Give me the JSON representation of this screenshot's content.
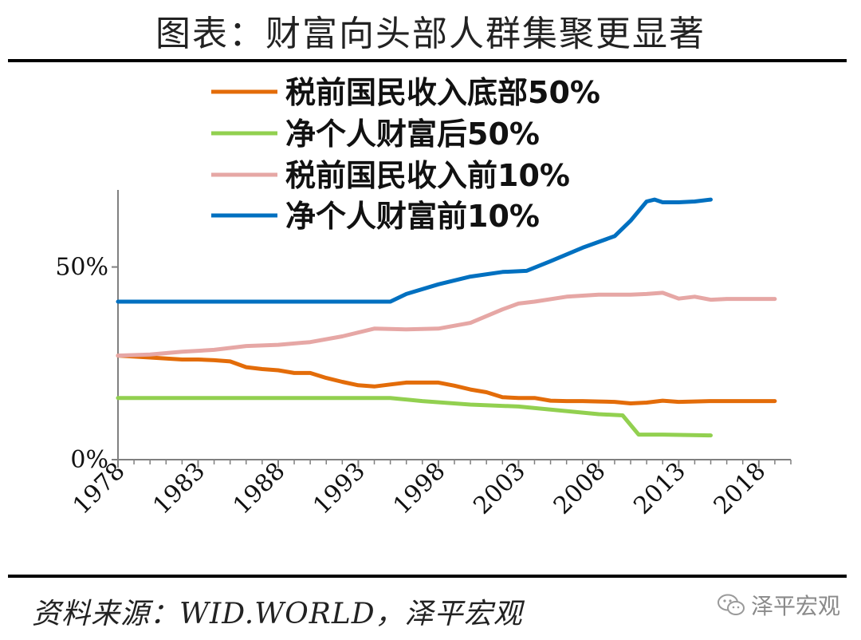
{
  "title": "图表：财富向头部人群集聚更显著",
  "source": "资料来源：WID.WORLD，泽平宏观",
  "watermark": {
    "text": "泽平宏观",
    "icon": "wechat-icon"
  },
  "chart_data": {
    "type": "line",
    "title": "",
    "xlabel": "",
    "ylabel": "",
    "xlim": [
      1978,
      2020
    ],
    "ylim": [
      0,
      70
    ],
    "x_ticks": [
      "1978",
      "1983",
      "1988",
      "1993",
      "1998",
      "2003",
      "2008",
      "2013",
      "2018"
    ],
    "y_ticks": [
      "0%",
      "50%"
    ],
    "legend_position": "top-left",
    "grid": false,
    "series": [
      {
        "name": "税前国民收入底部50%",
        "color": "#E36C09",
        "x": [
          1978,
          1980,
          1982,
          1983,
          1984,
          1985,
          1986,
          1987,
          1988,
          1989,
          1990,
          1991,
          1992,
          1993,
          1994,
          1995,
          1996,
          1997,
          1998,
          1999,
          2000,
          2001,
          2002,
          2003,
          2004,
          2005,
          2006,
          2007,
          2008,
          2009,
          2010,
          2011,
          2012,
          2013,
          2014,
          2015,
          2016,
          2017,
          2018,
          2019
        ],
        "values": [
          27,
          26.5,
          26,
          26,
          25.8,
          25.5,
          24,
          23.5,
          23.2,
          22.5,
          22.5,
          21.2,
          20.2,
          19.3,
          19,
          19.5,
          20,
          20,
          20,
          19.2,
          18.2,
          17.5,
          16.2,
          16,
          16,
          15.3,
          15.2,
          15.2,
          15.1,
          15,
          14.6,
          14.8,
          15.3,
          15,
          15.1,
          15.2,
          15.2,
          15.2,
          15.2,
          15.2
        ]
      },
      {
        "name": "净个人财富后50%",
        "color": "#92D050",
        "x": [
          1978,
          1990,
          1995,
          1997,
          2000,
          2003,
          2005,
          2008,
          2009.5,
          2010.5,
          2012,
          2015
        ],
        "values": [
          16,
          16,
          16,
          15.2,
          14.3,
          13.8,
          13,
          11.8,
          11.5,
          6.5,
          6.5,
          6.3
        ]
      },
      {
        "name": "税前国民收入前10%",
        "color": "#E6A7A5",
        "x": [
          1978,
          1980,
          1982,
          1984,
          1986,
          1988,
          1990,
          1992,
          1994,
          1996,
          1998,
          2000,
          2002,
          2003,
          2004,
          2006,
          2008,
          2010,
          2011,
          2012,
          2013,
          2014,
          2015,
          2016,
          2018,
          2019
        ],
        "values": [
          27,
          27.3,
          28,
          28.5,
          29.5,
          29.8,
          30.5,
          32,
          34,
          33.8,
          34,
          35.5,
          39,
          40.5,
          41,
          42.3,
          42.8,
          42.8,
          43,
          43.3,
          41.8,
          42.3,
          41.5,
          41.7,
          41.7,
          41.7
        ]
      },
      {
        "name": "净个人财富前10%",
        "color": "#0070C0",
        "x": [
          1978,
          1993,
          1995,
          1996,
          1998,
          2000,
          2002,
          2003.5,
          2005,
          2007,
          2009,
          2010,
          2011,
          2011.5,
          2012,
          2013,
          2014,
          2015
        ],
        "values": [
          41,
          41,
          41,
          43,
          45.5,
          47.5,
          48.7,
          49,
          51.5,
          55,
          58,
          62,
          67,
          67.5,
          66.8,
          66.8,
          67,
          67.5
        ]
      }
    ]
  }
}
